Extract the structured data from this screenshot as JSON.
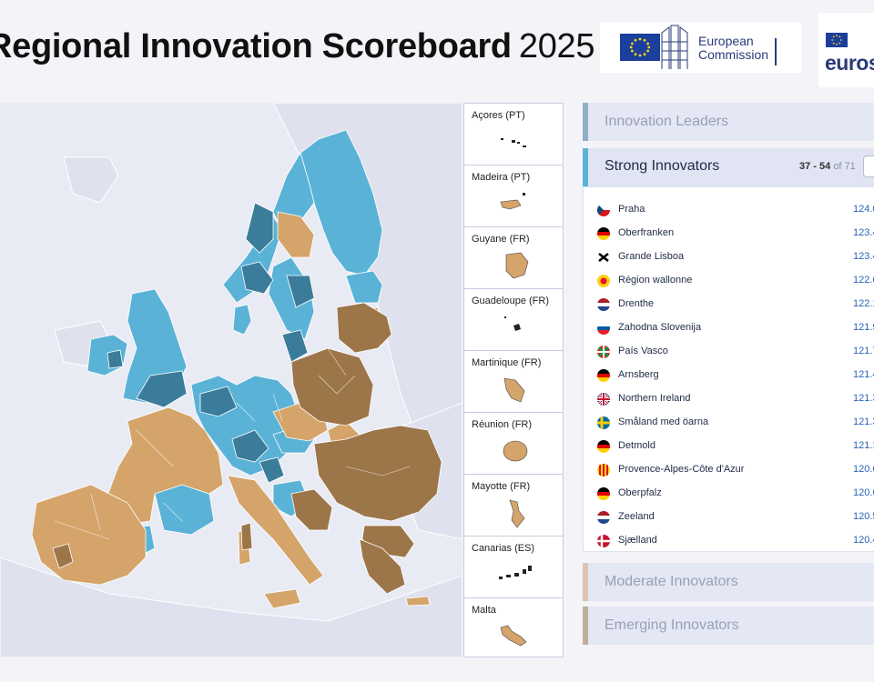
{
  "header": {
    "title_bold": "Regional Innovation Scoreboard",
    "title_year": "2025",
    "ec_logo_text_1": "European",
    "ec_logo_text_2": "Commission",
    "eurostat_text": "eurostat"
  },
  "colors": {
    "innovation_leader": "#3a7c9a",
    "strong_innovator": "#5ab3d6",
    "moderate_innovator": "#d4a46a",
    "emerging_innovator": "#9c7549",
    "sea": "#e9ebf4",
    "non_eu_land": "#dfe2ee"
  },
  "insets": [
    {
      "label": "Açores (PT)",
      "shape": "dots"
    },
    {
      "label": "Madeira (PT)",
      "shape": "island"
    },
    {
      "label": "Guyane (FR)",
      "shape": "guyane"
    },
    {
      "label": "Guadeloupe (FR)",
      "shape": "tiny"
    },
    {
      "label": "Martinique (FR)",
      "shape": "martinique"
    },
    {
      "label": "Réunion (FR)",
      "shape": "reunion"
    },
    {
      "label": "Mayotte (FR)",
      "shape": "mayotte"
    },
    {
      "label": "Canarias (ES)",
      "shape": "canarias"
    },
    {
      "label": "Malta",
      "shape": "malta"
    }
  ],
  "groups": {
    "leaders": "Innovation Leaders",
    "strong": "Strong Innovators",
    "strong_range": "37 - 54",
    "strong_of": "of 71",
    "moderate": "Moderate Innovators",
    "emerging": "Emerging Innovators"
  },
  "regions": [
    {
      "name": "Praha",
      "score": "124.0",
      "flag": "cz"
    },
    {
      "name": "Oberfranken",
      "score": "123.4",
      "flag": "de"
    },
    {
      "name": "Grande Lisboa",
      "score": "123.4",
      "flag": "lisboa"
    },
    {
      "name": "Région wallonne",
      "score": "122.6",
      "flag": "wallonia"
    },
    {
      "name": "Drenthe",
      "score": "122.1",
      "flag": "nl"
    },
    {
      "name": "Zahodna Slovenija",
      "score": "121.9",
      "flag": "si"
    },
    {
      "name": "País Vasco",
      "score": "121.7",
      "flag": "basque"
    },
    {
      "name": "Arnsberg",
      "score": "121.4",
      "flag": "de"
    },
    {
      "name": "Northern Ireland",
      "score": "121.3",
      "flag": "uk"
    },
    {
      "name": "Småland med öarna",
      "score": "121.3",
      "flag": "se"
    },
    {
      "name": "Detmold",
      "score": "121.1",
      "flag": "de"
    },
    {
      "name": "Provence-Alpes-Côte d'Azur",
      "score": "120.6",
      "flag": "paca"
    },
    {
      "name": "Oberpfalz",
      "score": "120.6",
      "flag": "de"
    },
    {
      "name": "Zeeland",
      "score": "120.5",
      "flag": "nl"
    },
    {
      "name": "Sjælland",
      "score": "120.4",
      "flag": "dk"
    }
  ]
}
